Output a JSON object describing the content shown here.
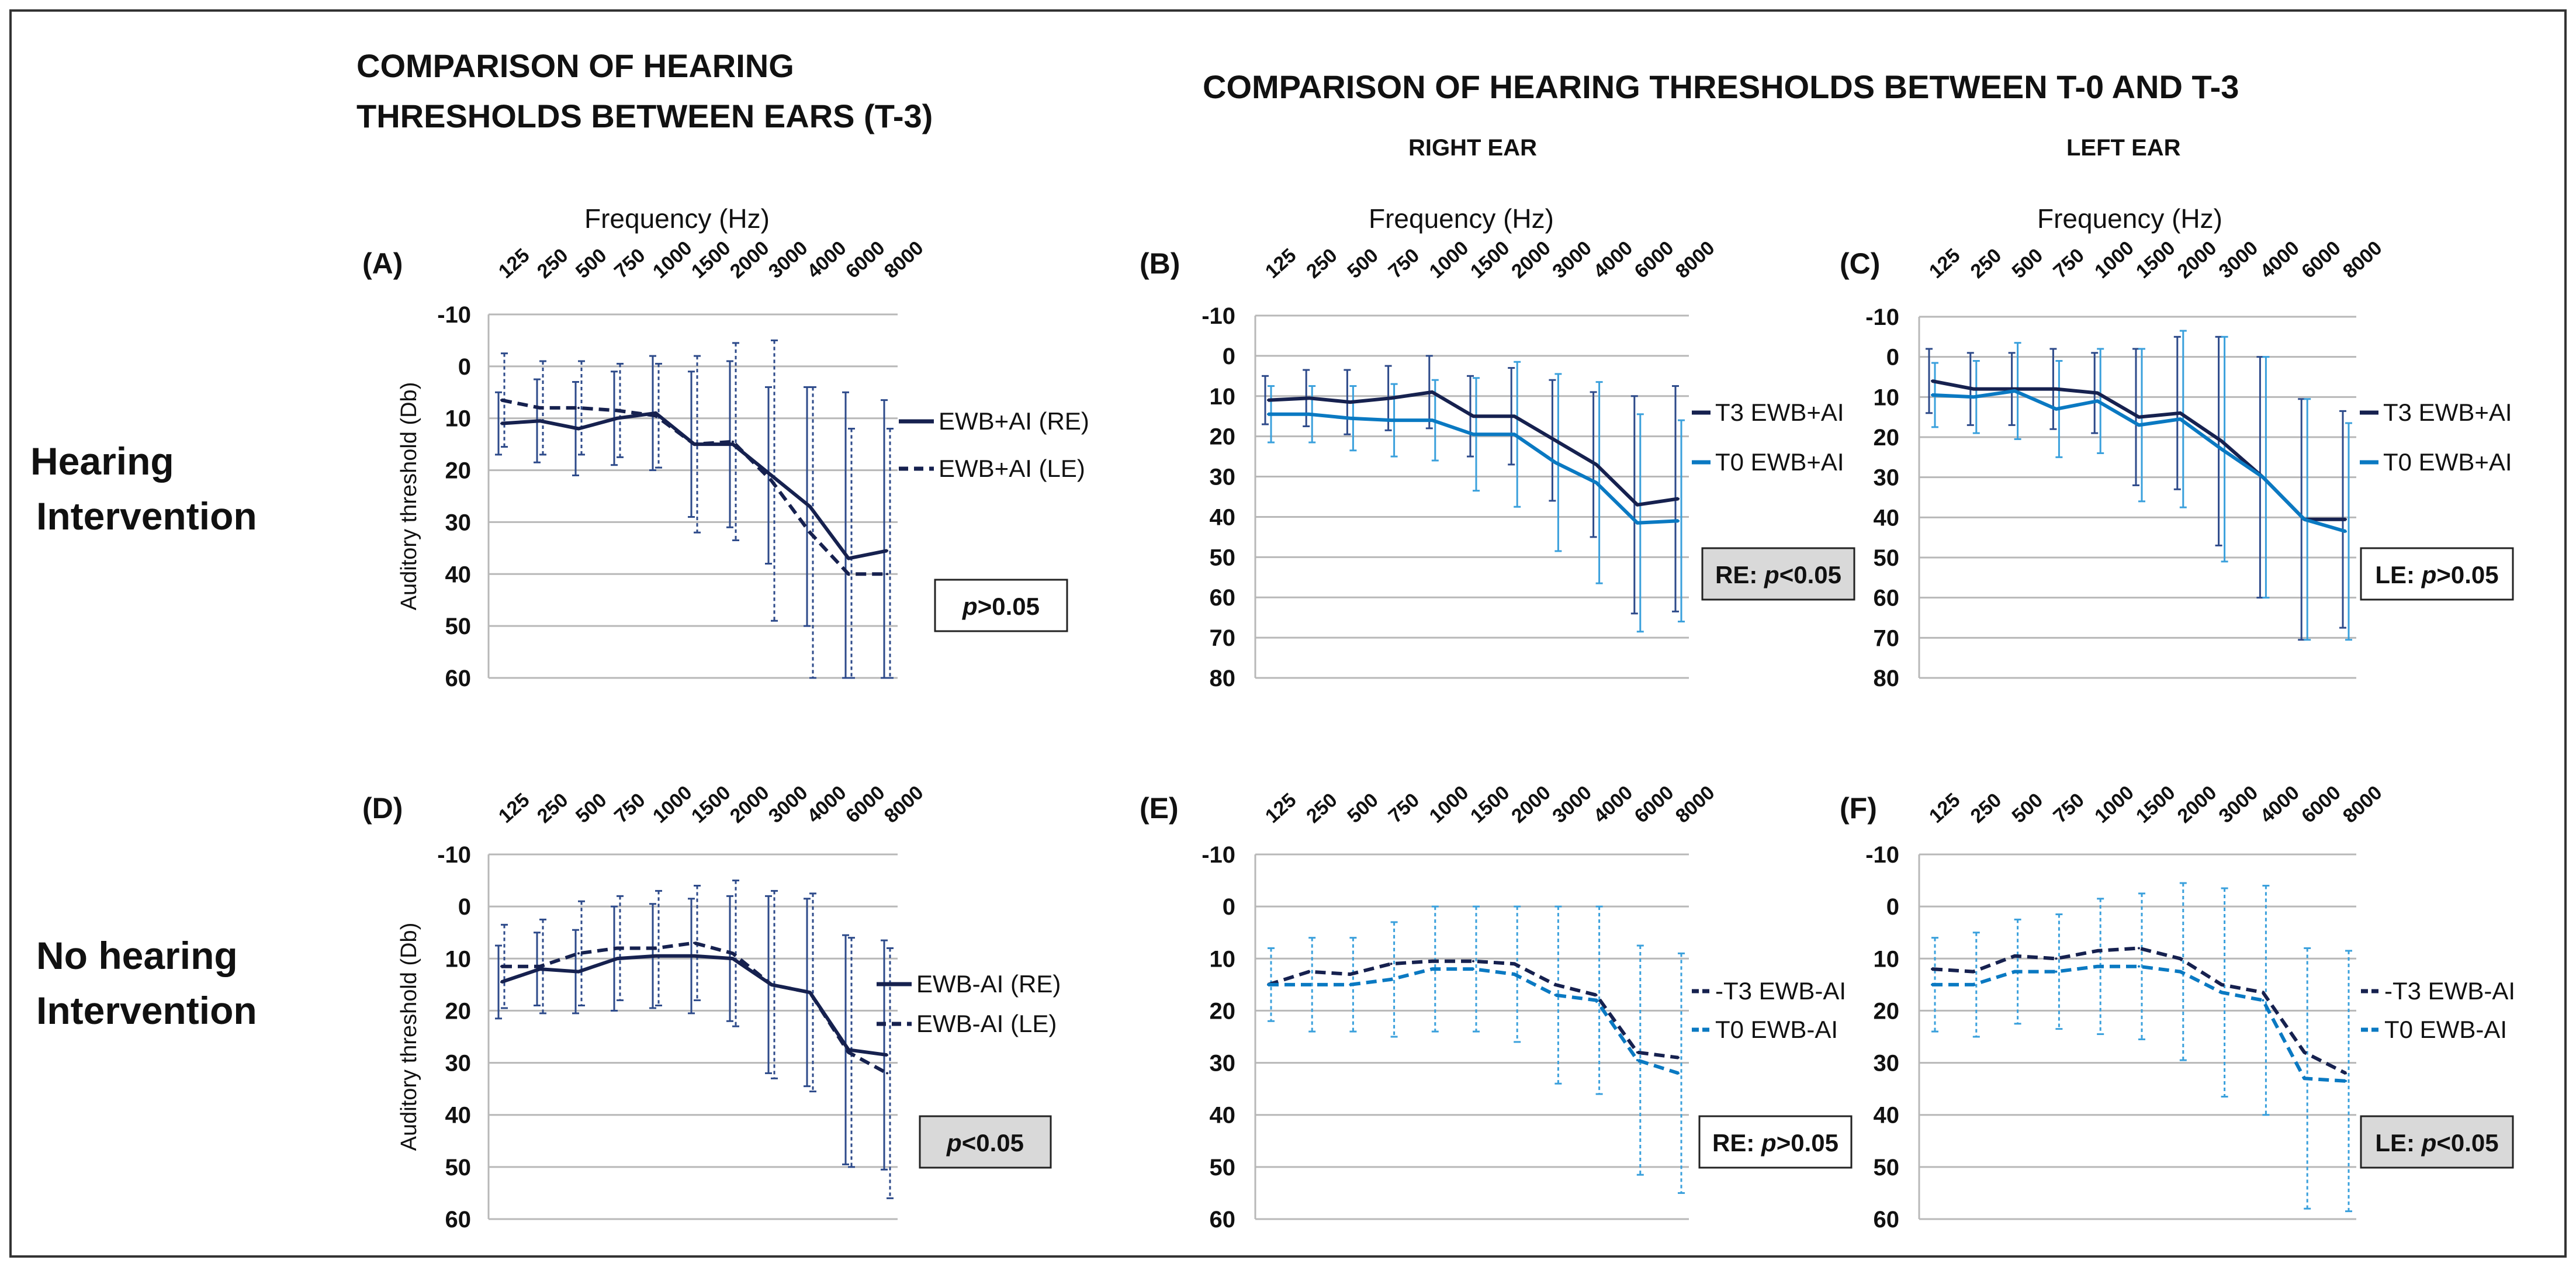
{
  "headings": {
    "left_line1": "COMPARISON OF HEARING",
    "left_line2": "THRESHOLDS BETWEEN EARS (T-3)",
    "right_main": "COMPARISON OF HEARING THRESHOLDS BETWEEN  T-0  AND  T-3",
    "right_ear": "RIGHT  EAR",
    "left_ear": "LEFT EAR"
  },
  "row_labels": {
    "hearing_line1": "Hearing",
    "hearing_line2": "Intervention",
    "no_hearing_line1": "No hearing",
    "no_hearing_line2": "Intervention"
  },
  "colors": {
    "dark": "#16214f",
    "blue": "#0a79c2",
    "grid": "#b8b8b8",
    "box_gray": "#d9d9d9"
  },
  "chart_data": [
    {
      "id": "A",
      "type": "line",
      "letter": "(A)",
      "xlabel": "Frequency (Hz)",
      "ylabel": "Auditory threshold (Db)",
      "categories": [
        "125",
        "250",
        "500",
        "750",
        "1000",
        "1500",
        "2000",
        "3000",
        "4000",
        "6000",
        "8000"
      ],
      "y_ticks": [
        -10,
        0,
        10,
        20,
        30,
        40,
        50,
        60
      ],
      "ylim": [
        -10,
        60
      ],
      "grid": true,
      "series": [
        {
          "name": "EWB+AI (RE)",
          "style": "solid",
          "color": "#16214f",
          "values": [
            11,
            10.5,
            12,
            10,
            9,
            15,
            15,
            21,
            27,
            37,
            35.5
          ],
          "err": [
            6,
            8,
            9,
            9,
            11,
            14,
            16,
            17,
            23,
            32,
            29
          ]
        },
        {
          "name": "EWB+AI (LE)",
          "style": "dashed",
          "color": "#16214f",
          "values": [
            6.5,
            8,
            8,
            8.5,
            9.5,
            15,
            14.5,
            22,
            32,
            40,
            40
          ],
          "err": [
            9,
            9,
            9,
            9,
            10,
            17,
            19,
            27,
            28,
            28,
            28
          ]
        }
      ],
      "p_value": {
        "prefix": "",
        "p": "p",
        "rest": ">0.05",
        "shaded": false
      }
    },
    {
      "id": "B",
      "type": "line",
      "letter": "(B)",
      "xlabel": "Frequency (Hz)",
      "ylabel": "",
      "categories": [
        "125",
        "250",
        "500",
        "750",
        "1000",
        "1500",
        "2000",
        "3000",
        "4000",
        "6000",
        "8000"
      ],
      "y_ticks": [
        -10,
        0,
        10,
        20,
        30,
        40,
        50,
        60,
        70,
        80
      ],
      "ylim": [
        -10,
        80
      ],
      "grid": true,
      "series": [
        {
          "name": "T3 EWB+AI",
          "style": "solid",
          "color": "#16214f",
          "values": [
            11,
            10.5,
            11.5,
            10.5,
            9,
            15,
            15,
            21,
            27,
            37,
            35.5
          ],
          "err": [
            6,
            7,
            8,
            8,
            9,
            10,
            12,
            15,
            18,
            27,
            28
          ]
        },
        {
          "name": "T0 EWB+AI",
          "style": "solid",
          "color": "#0a79c2",
          "values": [
            14.5,
            14.5,
            15.5,
            16,
            16,
            19.5,
            19.5,
            26.5,
            31.5,
            41.5,
            41
          ],
          "err": [
            7,
            7,
            8,
            9,
            10,
            14,
            18,
            22,
            25,
            27,
            25
          ]
        }
      ],
      "p_value": {
        "prefix": "RE: ",
        "p": "p",
        "rest": "<0.05",
        "shaded": true
      }
    },
    {
      "id": "C",
      "type": "line",
      "letter": "(C)",
      "xlabel": "Frequency (Hz)",
      "ylabel": "",
      "categories": [
        "125",
        "250",
        "500",
        "750",
        "1000",
        "1500",
        "2000",
        "3000",
        "4000",
        "6000",
        "8000"
      ],
      "y_ticks": [
        -10,
        0,
        10,
        20,
        30,
        40,
        50,
        60,
        70,
        80
      ],
      "ylim": [
        -10,
        80
      ],
      "grid": true,
      "series": [
        {
          "name": "T3 EWB+AI",
          "style": "solid",
          "color": "#16214f",
          "values": [
            6,
            8,
            8,
            8,
            9,
            15,
            14,
            21,
            30,
            40.5,
            40.5
          ],
          "err": [
            8,
            9,
            9,
            10,
            10,
            17,
            19,
            26,
            30,
            30,
            27
          ]
        },
        {
          "name": "T0 EWB+AI",
          "style": "solid",
          "color": "#0a79c2",
          "values": [
            9.5,
            10,
            8.5,
            13,
            11,
            17,
            15.5,
            23,
            30,
            40.5,
            43.5
          ],
          "err": [
            8,
            9,
            12,
            12,
            13,
            19,
            22,
            28,
            30,
            30,
            27
          ]
        }
      ],
      "p_value": {
        "prefix": "LE: ",
        "p": "p",
        "rest": ">0.05",
        "shaded": false
      }
    },
    {
      "id": "D",
      "type": "line",
      "letter": "(D)",
      "xlabel": "",
      "ylabel": "Auditory threshold (Db)",
      "categories": [
        "125",
        "250",
        "500",
        "750",
        "1000",
        "1500",
        "2000",
        "3000",
        "4000",
        "6000",
        "8000"
      ],
      "y_ticks": [
        -10,
        0,
        10,
        20,
        30,
        40,
        50,
        60
      ],
      "ylim": [
        -10,
        60
      ],
      "grid": true,
      "series": [
        {
          "name": "EWB-AI (RE)",
          "style": "solid",
          "color": "#16214f",
          "values": [
            14.5,
            12,
            12.5,
            10,
            9.5,
            9.5,
            10,
            15,
            16.5,
            27.5,
            28.5
          ],
          "err": [
            7,
            7,
            8,
            10,
            10,
            11,
            12,
            17,
            18,
            22,
            22
          ]
        },
        {
          "name": "EWB-AI (LE)",
          "style": "dashed",
          "color": "#16214f",
          "values": [
            11.5,
            11.5,
            9,
            8,
            8,
            7,
            9,
            15,
            16.5,
            28,
            32
          ],
          "err": [
            8,
            9,
            10,
            10,
            11,
            11,
            14,
            18,
            19,
            22,
            24
          ]
        }
      ],
      "p_value": {
        "prefix": "",
        "p": "p",
        "rest": "<0.05",
        "shaded": true
      }
    },
    {
      "id": "E",
      "type": "line",
      "letter": "(E)",
      "xlabel": "",
      "ylabel": "",
      "categories": [
        "125",
        "250",
        "500",
        "750",
        "1000",
        "1500",
        "2000",
        "3000",
        "4000",
        "6000",
        "8000"
      ],
      "y_ticks": [
        -10,
        0,
        10,
        20,
        30,
        40,
        50,
        60
      ],
      "ylim": [
        -10,
        60
      ],
      "grid": true,
      "series": [
        {
          "name": "-T3 EWB-AI",
          "style": "dashed",
          "color": "#16214f",
          "values": [
            15,
            12.5,
            13,
            11,
            10.5,
            10.5,
            11,
            15,
            17,
            28,
            29
          ]
        },
        {
          "name": "T0 EWB-AI",
          "style": "dashed",
          "color": "#0a79c2",
          "values": [
            15,
            15,
            15,
            14,
            12,
            12,
            13,
            17,
            18,
            29.5,
            32
          ],
          "err": [
            7,
            9,
            9,
            11,
            12,
            12,
            13,
            17,
            18,
            22,
            23
          ]
        }
      ],
      "p_value": {
        "prefix": "RE: ",
        "p": "p",
        "rest": ">0.05",
        "shaded": false
      }
    },
    {
      "id": "F",
      "type": "line",
      "letter": "(F)",
      "xlabel": "",
      "ylabel": "",
      "categories": [
        "125",
        "250",
        "500",
        "750",
        "1000",
        "1500",
        "2000",
        "3000",
        "4000",
        "6000",
        "8000"
      ],
      "y_ticks": [
        -10,
        0,
        10,
        20,
        30,
        40,
        50,
        60
      ],
      "ylim": [
        -10,
        60
      ],
      "grid": true,
      "series": [
        {
          "name": "-T3 EWB-AI",
          "style": "dashed",
          "color": "#16214f",
          "values": [
            12,
            12.5,
            9.5,
            10,
            8.5,
            8,
            10,
            15,
            16.5,
            28,
            32
          ]
        },
        {
          "name": "T0 EWB-AI",
          "style": "dashed",
          "color": "#0a79c2",
          "values": [
            15,
            15,
            12.5,
            12.5,
            11.5,
            11.5,
            12.5,
            16.5,
            18,
            33,
            33.5
          ],
          "err": [
            9,
            10,
            10,
            11,
            13,
            14,
            17,
            20,
            22,
            25,
            25
          ]
        }
      ],
      "p_value": {
        "prefix": "LE: ",
        "p": "p",
        "rest": "<0.05",
        "shaded": true
      }
    }
  ]
}
